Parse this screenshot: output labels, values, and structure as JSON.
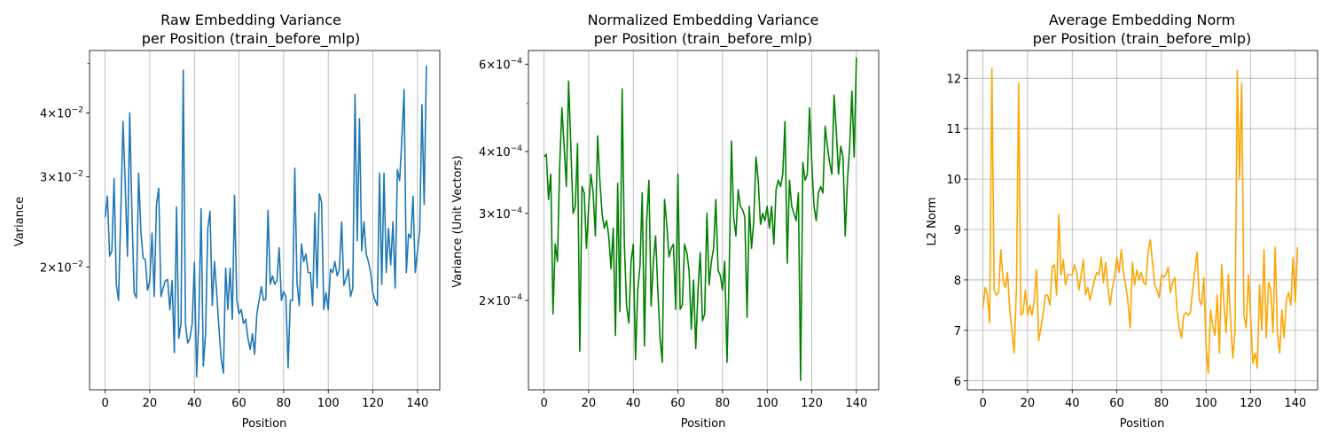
{
  "chart_data": [
    {
      "type": "line",
      "title_line1": "Raw Embedding Variance",
      "title_line2": "per Position (train_before_mlp)",
      "xlabel": "Position",
      "ylabel": "Variance",
      "yscale": "log",
      "xlim": [
        -7,
        150
      ],
      "ylim": [
        0.0115,
        0.053
      ],
      "xticks": [
        0,
        20,
        40,
        60,
        80,
        100,
        120,
        140
      ],
      "ytick_labels": [
        {
          "value": 0.02,
          "mant": "2",
          "exp": "−2"
        },
        {
          "value": 0.03,
          "mant": "3",
          "exp": "−2"
        },
        {
          "value": 0.04,
          "mant": "4",
          "exp": "−2"
        }
      ],
      "color": "#1f77b4",
      "grid": "x",
      "series": [
        {
          "values": [
            0.025,
            0.0275,
            0.021,
            0.0215,
            0.0298,
            0.0185,
            0.0172,
            0.0255,
            0.0385,
            0.029,
            0.021,
            0.04,
            0.0255,
            0.0178,
            0.0174,
            0.0305,
            0.0235,
            0.0208,
            0.0207,
            0.018,
            0.0188,
            0.0233,
            0.0175,
            0.0265,
            0.0285,
            0.0175,
            0.0182,
            0.0188,
            0.0189,
            0.0165,
            0.0188,
            0.0136,
            0.0262,
            0.0145,
            0.0155,
            0.0485,
            0.0155,
            0.0142,
            0.0145,
            0.0155,
            0.0204,
            0.0122,
            0.0159,
            0.026,
            0.0128,
            0.0148,
            0.0238,
            0.0257,
            0.0168,
            0.0205,
            0.0178,
            0.0152,
            0.0132,
            0.0124,
            0.0199,
            0.0165,
            0.0199,
            0.0158,
            0.0276,
            0.0172,
            0.0162,
            0.0165,
            0.0155,
            0.0158,
            0.0145,
            0.0138,
            0.0148,
            0.0135,
            0.0162,
            0.0172,
            0.0183,
            0.0172,
            0.0173,
            0.0258,
            0.0185,
            0.0192,
            0.0185,
            0.0188,
            0.0218,
            0.0172,
            0.0179,
            0.0175,
            0.0127,
            0.0172,
            0.0172,
            0.0312,
            0.0186,
            0.0168,
            0.0222,
            0.0205,
            0.0212,
            0.0195,
            0.0195,
            0.0168,
            0.0255,
            0.0182,
            0.0278,
            0.0268,
            0.0165,
            0.0178,
            0.0165,
            0.0198,
            0.0195,
            0.0205,
            0.0192,
            0.0198,
            0.0245,
            0.0184,
            0.019,
            0.0198,
            0.0175,
            0.0182,
            0.0435,
            0.0225,
            0.039,
            0.0215,
            0.0245,
            0.0212,
            0.0205,
            0.0195,
            0.0178,
            0.0172,
            0.0168,
            0.0305,
            0.0185,
            0.0305,
            0.0195,
            0.0238,
            0.0202,
            0.0245,
            0.0182,
            0.031,
            0.0295,
            0.0355,
            0.0445,
            0.0195,
            0.0232,
            0.0228,
            0.0275,
            0.0195,
            0.0215,
            0.0235,
            0.0415,
            0.0265,
            0.0495
          ]
        }
      ]
    },
    {
      "type": "line",
      "title_line1": "Normalized Embedding Variance",
      "title_line2": "per Position (train_before_mlp)",
      "xlabel": "Position",
      "ylabel": "Variance (Unit Vectors)",
      "yscale": "log",
      "xlim": [
        -7,
        150
      ],
      "ylim": [
        0.000132,
        0.00064
      ],
      "xticks": [
        0,
        20,
        40,
        60,
        80,
        100,
        120,
        140
      ],
      "ytick_labels": [
        {
          "value": 0.0002,
          "mant": "2",
          "exp": "−4"
        },
        {
          "value": 0.0003,
          "mant": "3",
          "exp": "−4"
        },
        {
          "value": 0.0004,
          "mant": "4",
          "exp": "−4"
        },
        {
          "value": 0.0006,
          "mant": "6",
          "exp": "−4"
        }
      ],
      "color": "#008000",
      "grid": "x",
      "series": [
        {
          "values": [
            0.00039,
            0.000395,
            0.00032,
            0.00036,
            0.000188,
            0.00026,
            0.00024,
            0.000375,
            0.00049,
            0.00041,
            0.00034,
            0.000555,
            0.00041,
            0.0003,
            0.00031,
            0.000415,
            0.000158,
            0.00034,
            0.00033,
            0.000255,
            0.00031,
            0.00036,
            0.00033,
            0.00027,
            0.00043,
            0.00035,
            0.0003,
            0.00028,
            0.00029,
            0.00027,
            0.000232,
            0.00028,
            0.00017,
            0.000345,
            0.00019,
            0.000535,
            0.00026,
            0.000195,
            0.00018,
            0.00024,
            0.00026,
            0.000152,
            0.00021,
            0.000235,
            0.00033,
            0.000162,
            0.00029,
            0.00035,
            0.000195,
            0.00024,
            0.00027,
            0.00021,
            0.000168,
            0.00015,
            0.00032,
            0.000285,
            0.000245,
            0.000255,
            0.00026,
            0.000192,
            0.00036,
            0.000192,
            0.000196,
            0.00026,
            0.00025,
            0.00023,
            0.000175,
            0.00022,
            0.00016,
            0.00021,
            0.00025,
            0.000182,
            0.000188,
            0.0003,
            0.000215,
            0.00024,
            0.000255,
            0.00032,
            0.00023,
            0.000225,
            0.00021,
            0.00024,
            0.00015,
            0.00023,
            0.00042,
            0.000295,
            0.00027,
            0.000335,
            0.00031,
            0.000305,
            0.000295,
            0.000185,
            0.00031,
            0.000255,
            0.00029,
            0.00039,
            0.00035,
            0.000285,
            0.0003,
            0.00029,
            0.00031,
            0.00028,
            0.00031,
            0.00026,
            0.000335,
            0.00035,
            0.00034,
            0.00036,
            0.00046,
            0.000238,
            0.00035,
            0.00031,
            0.0003,
            0.00029,
            0.00033,
            0.000138,
            0.00038,
            0.00035,
            0.00036,
            0.00049,
            0.00038,
            0.00031,
            0.00029,
            0.00033,
            0.00034,
            0.00033,
            0.00045,
            0.00041,
            0.00038,
            0.00036,
            0.00052,
            0.00044,
            0.00036,
            0.00041,
            0.00039,
            0.00027,
            0.00035,
            0.00041,
            0.00053,
            0.00039,
            0.00062
          ]
        }
      ]
    },
    {
      "type": "line",
      "title_line1": "Average Embedding Norm",
      "title_line2": "per Position (train_before_mlp)",
      "xlabel": "Position",
      "ylabel": "L2 Norm",
      "yscale": "linear",
      "xlim": [
        -7,
        150
      ],
      "ylim": [
        5.82,
        12.55
      ],
      "xticks": [
        0,
        20,
        40,
        60,
        80,
        100,
        120,
        140
      ],
      "yticks": [
        6,
        7,
        8,
        9,
        10,
        11,
        12
      ],
      "color": "#ffa500",
      "grid": "both",
      "series": [
        {
          "values": [
            7.45,
            7.85,
            7.7,
            7.15,
            12.2,
            7.8,
            7.7,
            7.75,
            8.6,
            8.0,
            7.85,
            8.15,
            7.4,
            7.0,
            6.55,
            7.85,
            11.9,
            7.3,
            7.35,
            7.8,
            7.3,
            7.5,
            7.3,
            7.6,
            8.2,
            6.8,
            7.05,
            7.35,
            7.7,
            7.7,
            7.5,
            8.25,
            8.3,
            7.7,
            9.3,
            8.1,
            8.4,
            7.9,
            8.1,
            8.1,
            8.1,
            8.3,
            8.15,
            7.8,
            8.1,
            8.4,
            7.7,
            7.85,
            7.6,
            7.8,
            8.0,
            8.15,
            8.1,
            8.45,
            7.95,
            8.35,
            7.85,
            7.5,
            7.85,
            8.05,
            8.45,
            8.15,
            8.6,
            8.15,
            7.9,
            7.55,
            7.05,
            8.35,
            7.9,
            8.2,
            8.0,
            8.15,
            7.95,
            7.9,
            8.55,
            8.8,
            8.35,
            7.9,
            7.8,
            7.65,
            8.1,
            8.05,
            8.1,
            8.25,
            7.75,
            7.95,
            8.05,
            7.4,
            7.05,
            6.85,
            7.3,
            7.35,
            7.3,
            7.35,
            7.8,
            8.2,
            8.55,
            7.6,
            7.5,
            8.05,
            6.7,
            6.15,
            7.4,
            7.1,
            6.9,
            7.7,
            6.55,
            8.3,
            7.55,
            6.95,
            8.1,
            7.2,
            6.45,
            7.0,
            12.15,
            10.0,
            11.9,
            7.3,
            7.05,
            8.1,
            7.25,
            6.35,
            6.55,
            6.25,
            7.9,
            7.0,
            8.6,
            6.85,
            7.95,
            7.8,
            6.95,
            8.65,
            6.95,
            6.55,
            7.4,
            6.85,
            7.6,
            7.75,
            7.5,
            8.45,
            7.55,
            8.65
          ]
        }
      ]
    }
  ]
}
